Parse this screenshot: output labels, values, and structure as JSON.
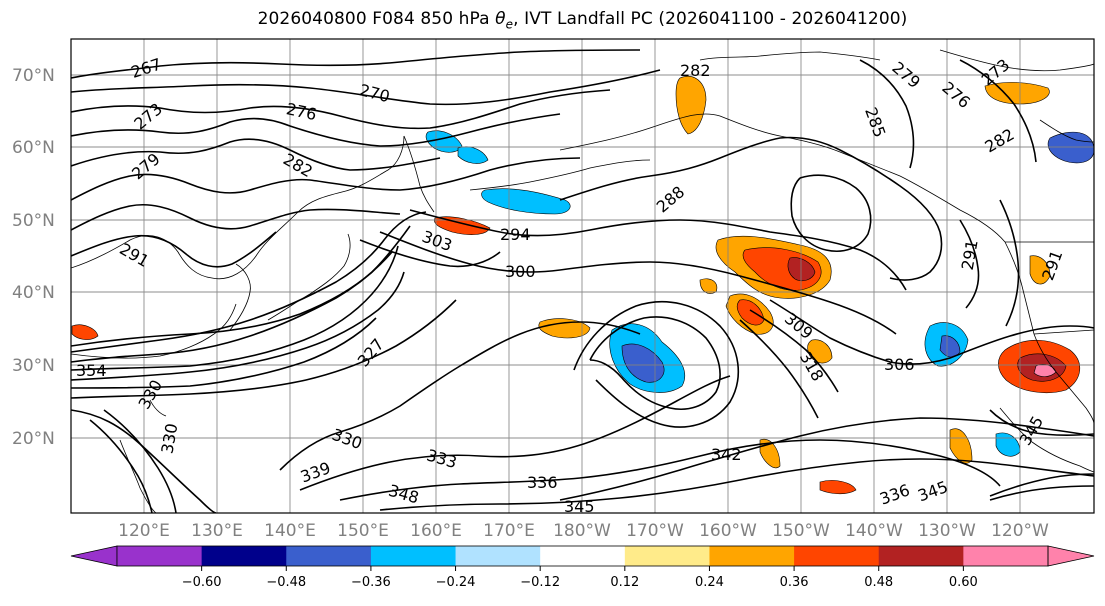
{
  "title": {
    "prefix": "2026040800 F084 850 hPa ",
    "symbol": "θ",
    "subscript": "e",
    "suffix": ", IVT Landfall PC (2026041100 - 2026041200)"
  },
  "map": {
    "lat_labels": [
      "70°N",
      "60°N",
      "50°N",
      "40°N",
      "30°N",
      "20°N"
    ],
    "lon_labels": [
      "120°E",
      "130°E",
      "140°E",
      "150°E",
      "160°E",
      "170°E",
      "180°W",
      "170°W",
      "160°W",
      "150°W",
      "140°W",
      "130°W",
      "120°W"
    ],
    "contour_labels": [
      "267",
      "273",
      "270",
      "276",
      "279",
      "282",
      "282",
      "285",
      "288",
      "291",
      "294",
      "300",
      "303",
      "309",
      "318",
      "306",
      "327",
      "330",
      "333",
      "336",
      "339",
      "342",
      "345",
      "348",
      "279",
      "276",
      "273",
      "282",
      "291",
      "336",
      "345",
      "345",
      "354",
      "330",
      "330",
      "291"
    ],
    "line_color": "#000000",
    "grid_color": "#808080",
    "coast_color": "#000000"
  },
  "colorbar": {
    "ticks": [
      "−0.60",
      "−0.48",
      "−0.36",
      "−0.24",
      "−0.12",
      "0.12",
      "0.24",
      "0.36",
      "0.48",
      "0.60"
    ],
    "colors": [
      "#9932cc",
      "#00008b",
      "#3a5fcd",
      "#00bfff",
      "#b0e2ff",
      "#ffffff",
      "#ffeb8a",
      "#ffa500",
      "#ff4500",
      "#b22222",
      "#ff82ab"
    ],
    "under_color": "#9932cc",
    "over_color": "#ff82ab"
  },
  "shading_colors": {
    "pos_weak": "#ffa500",
    "pos_mid": "#ff4500",
    "pos_strong": "#b22222",
    "pos_max": "#ff82ab",
    "neg_weak": "#00bfff",
    "neg_mid": "#3a5fcd",
    "neg_pale": "#b0e2ff"
  }
}
